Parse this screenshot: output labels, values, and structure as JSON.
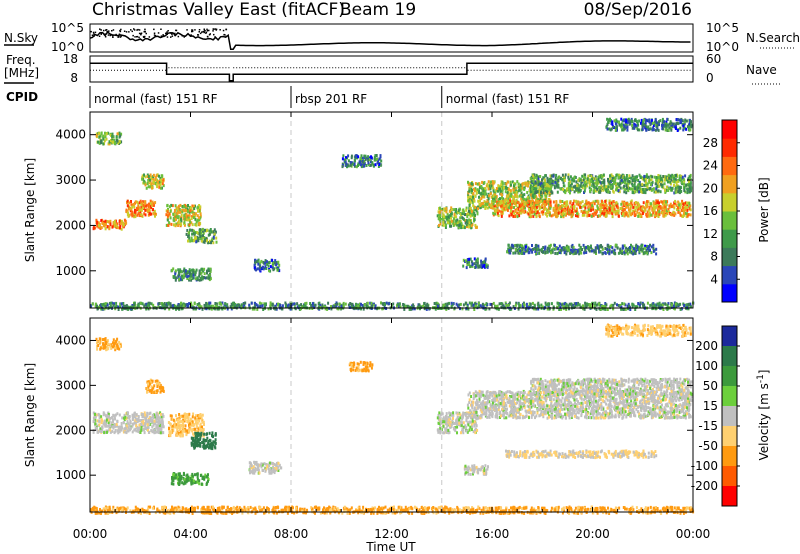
{
  "header": {
    "title": "Christmas Valley East (fitACF)",
    "beam": "Beam 19",
    "date": "08/Sep/2016"
  },
  "colors": {
    "frame": "#000000",
    "dashed": "#c8c8c8",
    "ground_scatter": "#c0c0c0"
  },
  "top_panels": {
    "nsky_label": "N.Sky",
    "nsky_ticks": [
      "10^5",
      "10^0"
    ],
    "nsearch_label": "N.Search",
    "nsearch_ticks": [
      "10^5",
      "10^0"
    ],
    "freq_label": "Freq.",
    "freq_unit": "[MHz]",
    "freq_ticks": [
      "18",
      "8"
    ],
    "nave_label": "Nave",
    "nave_ticks": [
      "60",
      "0"
    ],
    "cpid_label": "CPID",
    "cpid_modes": [
      {
        "label": "normal (fast) 151 RF",
        "start_hour": 0,
        "end_hour": 8
      },
      {
        "label": "rbsp 201 RF",
        "start_hour": 8,
        "end_hour": 14
      },
      {
        "label": "normal (fast) 151 RF",
        "start_hour": 14,
        "end_hour": 24
      }
    ]
  },
  "chart_data": [
    {
      "type": "heatmap",
      "title": "",
      "xlabel": "Time UT",
      "ylabel": "Slant Range [km]",
      "xlim": [
        0,
        24
      ],
      "ylim": [
        180,
        4500
      ],
      "x_ticks": [
        "00:00",
        "04:00",
        "08:00",
        "12:00",
        "16:00",
        "20:00",
        "00:00"
      ],
      "y_ticks": [
        "1000",
        "2000",
        "3000",
        "4000"
      ],
      "colorbar_label": "Power [dB]",
      "colorbar_ticks": [
        "4",
        "8",
        "12",
        "16",
        "20",
        "24",
        "28"
      ],
      "colorbar_range": [
        0,
        32
      ],
      "colorbar_colors": [
        "#0000ff",
        "#2a46b8",
        "#3c7a5a",
        "#3f9a4a",
        "#6abf3c",
        "#c8cf2d",
        "#f0a020",
        "#ff6a10",
        "#ff2a00",
        "#ff0000"
      ],
      "echo_bands": [
        {
          "start_hour": 0.1,
          "end_hour": 1.4,
          "range_km": 2050,
          "thickness_km": 200,
          "power_db": 23
        },
        {
          "start_hour": 1.4,
          "end_hour": 2.6,
          "range_km": 2400,
          "thickness_km": 350,
          "power_db": 22
        },
        {
          "start_hour": 2.0,
          "end_hour": 2.9,
          "range_km": 3000,
          "thickness_km": 300,
          "power_db": 17
        },
        {
          "start_hour": 0.2,
          "end_hour": 1.2,
          "range_km": 3950,
          "thickness_km": 250,
          "power_db": 14
        },
        {
          "start_hour": 3.0,
          "end_hour": 4.4,
          "range_km": 2250,
          "thickness_km": 450,
          "power_db": 18
        },
        {
          "start_hour": 3.8,
          "end_hour": 5.0,
          "range_km": 1800,
          "thickness_km": 300,
          "power_db": 12
        },
        {
          "start_hour": 3.2,
          "end_hour": 4.8,
          "range_km": 950,
          "thickness_km": 250,
          "power_db": 10
        },
        {
          "start_hour": 6.5,
          "end_hour": 7.5,
          "range_km": 1150,
          "thickness_km": 250,
          "power_db": 8
        },
        {
          "start_hour": 10.0,
          "end_hour": 11.6,
          "range_km": 3450,
          "thickness_km": 250,
          "power_db": 8
        },
        {
          "start_hour": 13.8,
          "end_hour": 15.4,
          "range_km": 2200,
          "thickness_km": 450,
          "power_db": 15
        },
        {
          "start_hour": 15.0,
          "end_hour": 18.3,
          "range_km": 2700,
          "thickness_km": 600,
          "power_db": 16
        },
        {
          "start_hour": 16.0,
          "end_hour": 23.9,
          "range_km": 2400,
          "thickness_km": 350,
          "power_db": 21
        },
        {
          "start_hour": 17.5,
          "end_hour": 23.9,
          "range_km": 2950,
          "thickness_km": 400,
          "power_db": 12
        },
        {
          "start_hour": 16.5,
          "end_hour": 22.5,
          "range_km": 1500,
          "thickness_km": 200,
          "power_db": 9
        },
        {
          "start_hour": 14.8,
          "end_hour": 15.8,
          "range_km": 1200,
          "thickness_km": 200,
          "power_db": 8
        },
        {
          "start_hour": 0.0,
          "end_hour": 24.0,
          "range_km": 250,
          "thickness_km": 150,
          "power_db": 10
        },
        {
          "start_hour": 20.5,
          "end_hour": 23.9,
          "range_km": 4250,
          "thickness_km": 250,
          "power_db": 8
        }
      ]
    },
    {
      "type": "heatmap",
      "title": "",
      "xlabel": "Time UT",
      "ylabel": "Slant Range [km]",
      "xlim": [
        0,
        24
      ],
      "ylim": [
        180,
        4500
      ],
      "x_ticks": [
        "00:00",
        "04:00",
        "08:00",
        "12:00",
        "16:00",
        "20:00",
        "00:00"
      ],
      "y_ticks": [
        "1000",
        "2000",
        "3000",
        "4000"
      ],
      "colorbar_label": "Velocity [m s^-1]",
      "colorbar_ticks": [
        "200",
        "100",
        "50",
        "15",
        "-15",
        "-50",
        "-100",
        "-200"
      ],
      "colorbar_colors": [
        "#1c2a9c",
        "#2c7a4a",
        "#3c9a3c",
        "#6ccf3c",
        "#c0c0c0",
        "#ffd070",
        "#ff9a10",
        "#ff5a00",
        "#ff0000"
      ],
      "echo_bands": [
        {
          "start_hour": 0.1,
          "end_hour": 2.9,
          "range_km": 2200,
          "thickness_km": 450,
          "velocity": 0
        },
        {
          "start_hour": 2.2,
          "end_hour": 2.9,
          "range_km": 3000,
          "thickness_km": 300,
          "velocity": -60
        },
        {
          "start_hour": 0.2,
          "end_hour": 1.2,
          "range_km": 3950,
          "thickness_km": 250,
          "velocity": -60
        },
        {
          "start_hour": 3.1,
          "end_hour": 4.5,
          "range_km": 2150,
          "thickness_km": 500,
          "velocity": -40
        },
        {
          "start_hour": 4.0,
          "end_hour": 5.0,
          "range_km": 1800,
          "thickness_km": 350,
          "velocity": 150
        },
        {
          "start_hour": 3.2,
          "end_hour": 4.7,
          "range_km": 950,
          "thickness_km": 250,
          "velocity": 60
        },
        {
          "start_hour": 6.3,
          "end_hour": 7.6,
          "range_km": 1200,
          "thickness_km": 250,
          "velocity": 0
        },
        {
          "start_hour": 10.3,
          "end_hour": 11.2,
          "range_km": 3450,
          "thickness_km": 200,
          "velocity": -60
        },
        {
          "start_hour": 13.8,
          "end_hour": 15.4,
          "range_km": 2200,
          "thickness_km": 450,
          "velocity": 0
        },
        {
          "start_hour": 15.0,
          "end_hour": 23.9,
          "range_km": 2600,
          "thickness_km": 600,
          "velocity": 0
        },
        {
          "start_hour": 17.5,
          "end_hour": 23.9,
          "range_km": 3000,
          "thickness_km": 350,
          "velocity": 0
        },
        {
          "start_hour": 16.5,
          "end_hour": 22.5,
          "range_km": 1500,
          "thickness_km": 150,
          "velocity": -20
        },
        {
          "start_hour": 14.8,
          "end_hour": 15.8,
          "range_km": 1150,
          "thickness_km": 200,
          "velocity": 0
        },
        {
          "start_hour": 0.0,
          "end_hour": 24.0,
          "range_km": 250,
          "thickness_km": 150,
          "velocity": -60
        },
        {
          "start_hour": 20.5,
          "end_hour": 23.9,
          "range_km": 4250,
          "thickness_km": 250,
          "velocity": -40
        }
      ]
    }
  ]
}
